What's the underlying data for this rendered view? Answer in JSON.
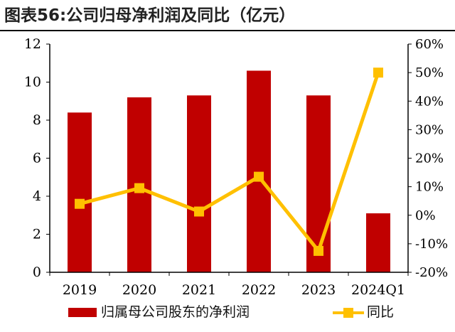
{
  "title": "图表56:公司归母净利润及同比（亿元）",
  "chart_data": {
    "type": "bar+line",
    "categories": [
      "2019",
      "2020",
      "2021",
      "2022",
      "2023",
      "2024Q1"
    ],
    "series": [
      {
        "name": "归属母公司股东的净利润",
        "type": "bar",
        "axis": "left",
        "color": "#C00000",
        "values": [
          8.4,
          9.2,
          9.3,
          10.6,
          9.3,
          3.1
        ]
      },
      {
        "name": "同比",
        "type": "line",
        "axis": "right",
        "color": "#FFC000",
        "values": [
          0.04,
          0.095,
          0.013,
          0.135,
          -0.125,
          0.5
        ]
      }
    ],
    "y_left": {
      "lim": [
        0,
        12
      ],
      "ticks": [
        0,
        2,
        4,
        6,
        8,
        10,
        12
      ],
      "tick_labels": [
        "0",
        "2",
        "4",
        "6",
        "8",
        "10",
        "12"
      ]
    },
    "y_right": {
      "lim": [
        -0.2,
        0.6
      ],
      "ticks": [
        -0.2,
        -0.1,
        0,
        0.1,
        0.2,
        0.3,
        0.4,
        0.5,
        0.6
      ],
      "tick_labels": [
        "-20%",
        "-10%",
        "0%",
        "10%",
        "20%",
        "30%",
        "40%",
        "50%",
        "60%"
      ]
    },
    "grid": false,
    "legend_position": "bottom"
  },
  "legend": {
    "bar_label": "归属母公司股东的净利润",
    "line_label": "同比"
  }
}
